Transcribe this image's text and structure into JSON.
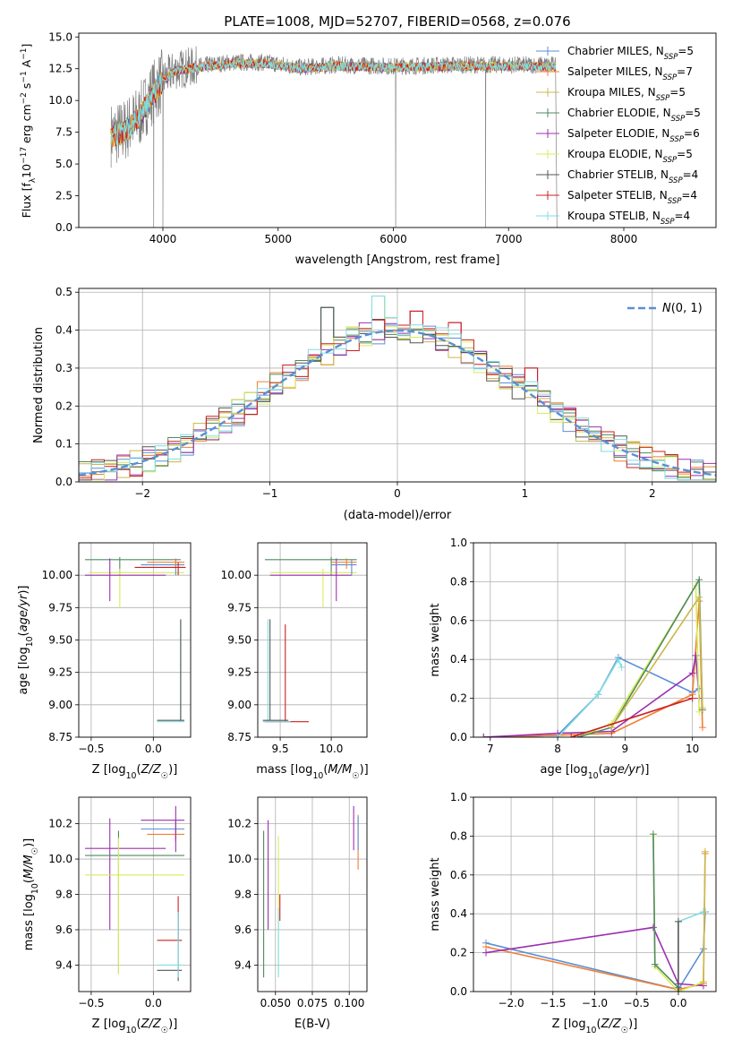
{
  "figure_title": "PLATE=1008, MJD=52707, FIBERID=0568, z=0.076",
  "models": [
    {
      "key": "chabrier-miles",
      "label": "Chabrier MILES, N",
      "sub": "SSP",
      "n": 5,
      "color": "#5b8fd6"
    },
    {
      "key": "salpeter-miles",
      "label": "Salpeter MILES, N",
      "sub": "SSP",
      "n": 7,
      "color": "#ef7f35"
    },
    {
      "key": "kroupa-miles",
      "label": "Kroupa MILES, N",
      "sub": "SSP",
      "n": 5,
      "color": "#c9b84a"
    },
    {
      "key": "chabrier-elodie",
      "label": "Chabrier ELODIE, N",
      "sub": "SSP",
      "n": 5,
      "color": "#4f8a60"
    },
    {
      "key": "salpeter-elodie",
      "label": "Salpeter ELODIE, N",
      "sub": "SSP",
      "n": 6,
      "color": "#9b30b0"
    },
    {
      "key": "kroupa-elodie",
      "label": "Kroupa ELODIE, N",
      "sub": "SSP",
      "n": 5,
      "color": "#d6ec5a"
    },
    {
      "key": "chabrier-stelib",
      "label": "Chabrier STELIB, N",
      "sub": "SSP",
      "n": 4,
      "color": "#555555"
    },
    {
      "key": "salpeter-stelib",
      "label": "Salpeter STELIB, N",
      "sub": "SSP",
      "n": 4,
      "color": "#cc2020"
    },
    {
      "key": "kroupa-stelib",
      "label": "Kroupa STELIB, N",
      "sub": "SSP",
      "n": 4,
      "color": "#7fdde0"
    }
  ],
  "chart_data": [
    {
      "id": "spectrum",
      "type": "line",
      "xlabel": "wavelength [Angstrom, rest frame]",
      "ylabel": "Flux [f_λ 10^-17 erg cm^-2 s^-1 A^-1]",
      "xlim": [
        3270,
        8800
      ],
      "ylim": [
        0,
        15.3
      ],
      "xticks": [
        4000,
        5000,
        6000,
        7000,
        8000
      ],
      "yticks": [
        0.0,
        2.5,
        5.0,
        7.5,
        10.0,
        12.5,
        15.0
      ],
      "data_series": {
        "name": "data",
        "color": "#808080",
        "x_range": [
          3550,
          7410
        ],
        "profile": [
          [
            3550,
            7.3
          ],
          [
            3650,
            7.5
          ],
          [
            3800,
            8.8
          ],
          [
            3900,
            10.5
          ],
          [
            4000,
            11.6
          ],
          [
            4100,
            12.4
          ],
          [
            4300,
            12.7
          ],
          [
            4600,
            13.0
          ],
          [
            4900,
            13.0
          ],
          [
            5200,
            12.6
          ],
          [
            5500,
            12.8
          ],
          [
            6000,
            12.7
          ],
          [
            6500,
            12.8
          ],
          [
            7000,
            12.8
          ],
          [
            7410,
            12.8
          ]
        ]
      },
      "model_profile": [
        [
          3550,
          7.2
        ],
        [
          3650,
          7.4
        ],
        [
          3800,
          8.7
        ],
        [
          3900,
          10.3
        ],
        [
          4000,
          11.5
        ],
        [
          4100,
          12.3
        ],
        [
          4300,
          12.6
        ],
        [
          4600,
          12.9
        ],
        [
          4900,
          12.9
        ],
        [
          5200,
          12.5
        ],
        [
          5500,
          12.7
        ],
        [
          6000,
          12.6
        ],
        [
          6500,
          12.7
        ],
        [
          7000,
          12.7
        ],
        [
          7410,
          12.7
        ]
      ],
      "drops": [
        [
          3920,
          0
        ],
        [
          4000,
          0
        ],
        [
          6020,
          0
        ],
        [
          6800,
          0
        ],
        [
          7420,
          0
        ]
      ]
    },
    {
      "id": "residuals",
      "type": "histogram",
      "xlabel": "(data-model)/error",
      "ylabel": "Normed distribution",
      "xlim": [
        -2.5,
        2.5
      ],
      "ylim": [
        0,
        0.51
      ],
      "xticks": [
        -2,
        -1,
        0,
        1,
        2
      ],
      "yticks": [
        0.0,
        0.1,
        0.2,
        0.3,
        0.4,
        0.5
      ],
      "bin_width": 0.1,
      "legend": "N(0,1)",
      "reference_curve": {
        "mean": 0,
        "sigma": 1,
        "color": "#5b8fd6"
      },
      "spike_bins": [
        [
          -0.2,
          0.49
        ],
        [
          -0.6,
          0.46
        ],
        [
          0.1,
          0.45
        ],
        [
          -0.9,
          0.28
        ],
        [
          0.4,
          0.42
        ],
        [
          1.0,
          0.3
        ]
      ]
    },
    {
      "id": "age-vs-Z",
      "type": "errorbar",
      "xlabel": "Z [log10(Z/Z☉)]",
      "ylabel": "age  [log10(age/yr)]",
      "xlim": [
        -0.6,
        0.3
      ],
      "ylim": [
        8.75,
        10.25
      ],
      "xticks": [
        -0.5,
        0.0
      ],
      "yticks": [
        8.75,
        9.0,
        9.25,
        9.5,
        9.75,
        10.0
      ],
      "points": [
        {
          "m": 3,
          "x": -0.27,
          "y": 10.12,
          "xe": [
            -0.55,
            0.22
          ],
          "ye": [
            10.0,
            10.14
          ]
        },
        {
          "m": 5,
          "x": -0.27,
          "y": 10.02,
          "xe": [
            -0.52,
            0.25
          ],
          "ye": [
            9.75,
            10.05
          ]
        },
        {
          "m": 4,
          "x": -0.35,
          "y": 10.0,
          "xe": [
            -0.55,
            0.1
          ],
          "ye": [
            9.8,
            10.13
          ]
        },
        {
          "m": 0,
          "x": 0.18,
          "y": 10.08,
          "xe": [
            -0.1,
            0.25
          ],
          "ye": [
            10.0,
            10.12
          ]
        },
        {
          "m": 1,
          "x": 0.18,
          "y": 10.1,
          "xe": [
            -0.05,
            0.25
          ],
          "ye": [
            10.05,
            10.13
          ]
        },
        {
          "m": 7,
          "x": 0.2,
          "y": 10.06,
          "xe": [
            -0.15,
            0.26
          ],
          "ye": [
            10.0,
            10.1
          ]
        },
        {
          "m": 8,
          "x": 0.22,
          "y": 8.87,
          "xe": [
            0.03,
            0.25
          ],
          "ye": [
            8.87,
            9.65
          ]
        },
        {
          "m": 6,
          "x": 0.22,
          "y": 8.88,
          "xe": [
            0.03,
            0.25
          ],
          "ye": [
            8.88,
            9.66
          ]
        }
      ]
    },
    {
      "id": "age-vs-mass",
      "type": "errorbar",
      "xlabel": "mass [log10(M/M☉)]",
      "ylabel": "",
      "xlim": [
        9.28,
        10.35
      ],
      "ylim": [
        8.75,
        10.25
      ],
      "xticks": [
        9.5,
        10.0
      ],
      "yticks": [
        8.75,
        9.0,
        9.25,
        9.5,
        9.75,
        10.0
      ],
      "points": [
        {
          "m": 3,
          "x": 10.0,
          "y": 10.12,
          "xe": [
            9.35,
            10.25
          ],
          "ye": [
            10.0,
            10.14
          ]
        },
        {
          "m": 5,
          "x": 9.92,
          "y": 10.02,
          "xe": [
            9.4,
            10.25
          ],
          "ye": [
            9.75,
            10.05
          ]
        },
        {
          "m": 4,
          "x": 10.05,
          "y": 10.0,
          "xe": [
            9.4,
            10.2
          ],
          "ye": [
            9.8,
            10.13
          ]
        },
        {
          "m": 0,
          "x": 10.2,
          "y": 10.08,
          "xe": [
            10.0,
            10.25
          ],
          "ye": [
            10.0,
            10.12
          ]
        },
        {
          "m": 1,
          "x": 10.15,
          "y": 10.1,
          "xe": [
            10.0,
            10.25
          ],
          "ye": [
            10.05,
            10.13
          ]
        },
        {
          "m": 7,
          "x": 9.55,
          "y": 8.87,
          "xe": [
            9.35,
            9.78
          ],
          "ye": [
            8.87,
            9.62
          ]
        },
        {
          "m": 8,
          "x": 9.38,
          "y": 8.87,
          "xe": [
            9.33,
            9.6
          ],
          "ye": [
            8.87,
            9.66
          ]
        },
        {
          "m": 6,
          "x": 9.4,
          "y": 8.88,
          "xe": [
            9.33,
            9.58
          ],
          "ye": [
            8.88,
            9.66
          ]
        }
      ]
    },
    {
      "id": "weight-vs-age",
      "type": "line",
      "xlabel": "age  [log10(age/yr)]",
      "ylabel": "mass weight",
      "xlim": [
        6.75,
        10.35
      ],
      "ylim": [
        0,
        1.0
      ],
      "xticks": [
        7,
        8,
        9,
        10
      ],
      "yticks": [
        0.0,
        0.2,
        0.4,
        0.6,
        0.8,
        1.0
      ],
      "series": [
        {
          "m": 0,
          "x": [
            6.9,
            8.0,
            8.6,
            8.9,
            10.0,
            10.1
          ],
          "y": [
            0.0,
            0.01,
            0.22,
            0.41,
            0.23,
            0.25
          ]
        },
        {
          "m": 1,
          "x": [
            6.9,
            8.0,
            8.8,
            10.0,
            10.1,
            10.15
          ],
          "y": [
            0.0,
            0.01,
            0.02,
            0.22,
            0.7,
            0.05
          ]
        },
        {
          "m": 4,
          "x": [
            6.9,
            8.0,
            8.8,
            10.0,
            10.05,
            10.1
          ],
          "y": [
            0.0,
            0.02,
            0.03,
            0.33,
            0.42,
            0.2
          ]
        },
        {
          "m": 5,
          "x": [
            8.3,
            8.8,
            10.05,
            10.1
          ],
          "y": [
            0.0,
            0.07,
            0.78,
            0.13
          ]
        },
        {
          "m": 3,
          "x": [
            8.3,
            8.8,
            10.1,
            10.15
          ],
          "y": [
            0.0,
            0.05,
            0.81,
            0.14
          ]
        },
        {
          "m": 8,
          "x": [
            8.0,
            8.6,
            8.9,
            8.95
          ],
          "y": [
            0.0,
            0.22,
            0.4,
            0.36
          ]
        },
        {
          "m": 2,
          "x": [
            8.8,
            10.1,
            10.15
          ],
          "y": [
            0.05,
            0.72,
            0.15
          ]
        },
        {
          "m": 7,
          "x": [
            8.2,
            10.0
          ],
          "y": [
            0.0,
            0.2
          ]
        }
      ]
    },
    {
      "id": "mass-vs-Z",
      "type": "errorbar",
      "xlabel": "Z [log10(Z/Z☉)]",
      "ylabel": "mass [log10(M/M☉)]",
      "xlim": [
        -0.6,
        0.3
      ],
      "ylim": [
        9.25,
        10.35
      ],
      "xticks": [
        -0.5,
        0.0
      ],
      "yticks": [
        9.4,
        9.6,
        9.8,
        10.0,
        10.2
      ],
      "points": [
        {
          "m": 4,
          "x": -0.35,
          "y": 10.06,
          "xe": [
            -0.55,
            0.1
          ],
          "ye": [
            9.6,
            10.23
          ]
        },
        {
          "m": 3,
          "x": -0.28,
          "y": 10.02,
          "xe": [
            -0.55,
            0.25
          ],
          "ye": [
            9.35,
            10.16
          ]
        },
        {
          "m": 5,
          "x": -0.28,
          "y": 9.91,
          "xe": [
            -0.55,
            0.25
          ],
          "ye": [
            9.35,
            10.12
          ]
        },
        {
          "m": 0,
          "x": 0.18,
          "y": 10.17,
          "xe": [
            -0.1,
            0.25
          ],
          "ye": [
            10.1,
            10.22
          ]
        },
        {
          "m": 1,
          "x": 0.18,
          "y": 10.14,
          "xe": [
            -0.05,
            0.25
          ],
          "ye": [
            10.1,
            10.18
          ]
        },
        {
          "m": 7,
          "x": 0.2,
          "y": 9.54,
          "xe": [
            0.03,
            0.23
          ],
          "ye": [
            9.54,
            9.79
          ]
        },
        {
          "m": 6,
          "x": 0.2,
          "y": 9.37,
          "xe": [
            0.03,
            0.23
          ],
          "ye": [
            9.31,
            9.7
          ]
        },
        {
          "m": 8,
          "x": 0.2,
          "y": 9.4,
          "xe": [
            0.03,
            0.23
          ],
          "ye": [
            9.33,
            9.7
          ]
        },
        {
          "m": 4,
          "x": 0.18,
          "y": 10.22,
          "xe": [
            -0.1,
            0.25
          ],
          "ye": [
            10.04,
            10.3
          ]
        }
      ]
    },
    {
      "id": "mass-vs-EBV",
      "type": "errorbar",
      "xlabel": "E(B-V)",
      "ylabel": "",
      "xlim": [
        0.038,
        0.112
      ],
      "ylim": [
        9.25,
        10.35
      ],
      "xticks": [
        0.05,
        0.075,
        0.1
      ],
      "yticks": [
        9.4,
        9.6,
        9.8,
        10.0,
        10.2
      ],
      "points": [
        {
          "m": 3,
          "x": 0.042,
          "y": 9.75,
          "ye": [
            9.33,
            10.16
          ]
        },
        {
          "m": 4,
          "x": 0.045,
          "y": 9.9,
          "ye": [
            9.6,
            10.22
          ]
        },
        {
          "m": 5,
          "x": 0.052,
          "y": 9.75,
          "ye": [
            9.36,
            10.13
          ]
        },
        {
          "m": 8,
          "x": 0.052,
          "y": 9.55,
          "ye": [
            9.33,
            9.72
          ]
        },
        {
          "m": 7,
          "x": 0.053,
          "y": 9.75,
          "ye": [
            9.65,
            9.8
          ]
        },
        {
          "m": 4,
          "x": 0.103,
          "y": 10.2,
          "ye": [
            10.05,
            10.3
          ]
        },
        {
          "m": 1,
          "x": 0.106,
          "y": 10.1,
          "ye": [
            9.94,
            10.25
          ]
        },
        {
          "m": 0,
          "x": 0.106,
          "y": 10.15,
          "ye": [
            10.05,
            10.24
          ]
        }
      ]
    },
    {
      "id": "weight-vs-Z",
      "type": "line",
      "xlabel": "Z [log10(Z/Z☉)]",
      "ylabel": "mass weight",
      "xlim": [
        -2.45,
        0.45
      ],
      "ylim": [
        0,
        1.0
      ],
      "xticks": [
        -2.0,
        -1.5,
        -1.0,
        -0.5,
        0.0
      ],
      "yticks": [
        0.0,
        0.2,
        0.4,
        0.6,
        0.8,
        1.0
      ],
      "series": [
        {
          "m": 0,
          "x": [
            -2.3,
            0.0,
            0.3,
            0.32
          ],
          "y": [
            0.25,
            0.01,
            0.22,
            0.41
          ]
        },
        {
          "m": 1,
          "x": [
            -2.3,
            0.0,
            0.3,
            0.32
          ],
          "y": [
            0.23,
            0.01,
            0.04,
            0.71
          ]
        },
        {
          "m": 4,
          "x": [
            -2.3,
            -0.3,
            0.0,
            0.3
          ],
          "y": [
            0.2,
            0.33,
            0.04,
            0.03
          ]
        },
        {
          "m": 5,
          "x": [
            -0.3,
            -0.28,
            0.0,
            0.3
          ],
          "y": [
            0.8,
            0.13,
            0.0,
            0.05
          ]
        },
        {
          "m": 3,
          "x": [
            -0.3,
            -0.28,
            0.0
          ],
          "y": [
            0.81,
            0.14,
            0.02
          ]
        },
        {
          "m": 8,
          "x": [
            0.0,
            0.3
          ],
          "y": [
            0.36,
            0.41
          ]
        },
        {
          "m": 6,
          "x": [
            0.0,
            0.0
          ],
          "y": [
            0.0,
            0.36
          ]
        },
        {
          "m": 2,
          "x": [
            0.3,
            0.32
          ],
          "y": [
            0.05,
            0.72
          ]
        }
      ]
    }
  ]
}
